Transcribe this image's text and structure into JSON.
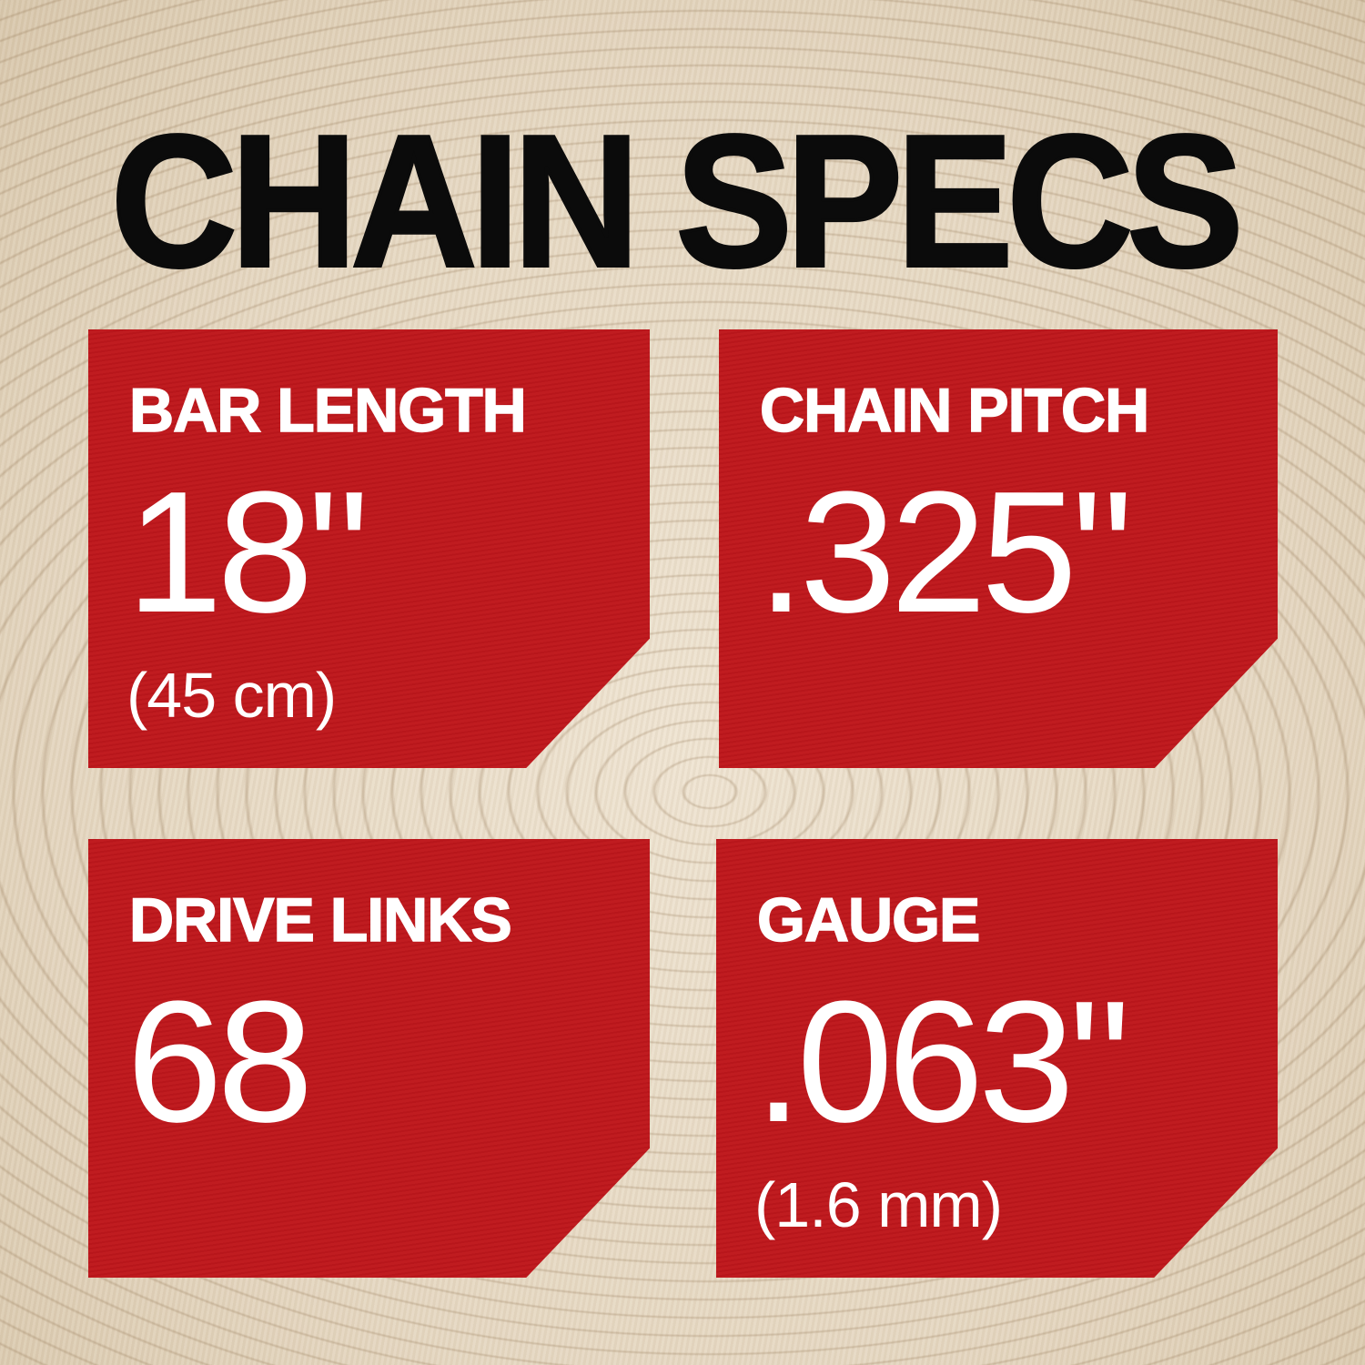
{
  "title": "CHAIN SPECS",
  "colors": {
    "card": "#bf171c",
    "title": "#0b0b0b",
    "text": "#ffffff"
  },
  "specs": [
    {
      "label": "BAR LENGTH",
      "value": "18\"",
      "sub": "(45 cm)"
    },
    {
      "label": "CHAIN PITCH",
      "value": ".325\"",
      "sub": null
    },
    {
      "label": "DRIVE LINKS",
      "value": "68",
      "sub": null
    },
    {
      "label": "GAUGE",
      "value": ".063\"",
      "sub": "(1.6 mm)"
    }
  ]
}
